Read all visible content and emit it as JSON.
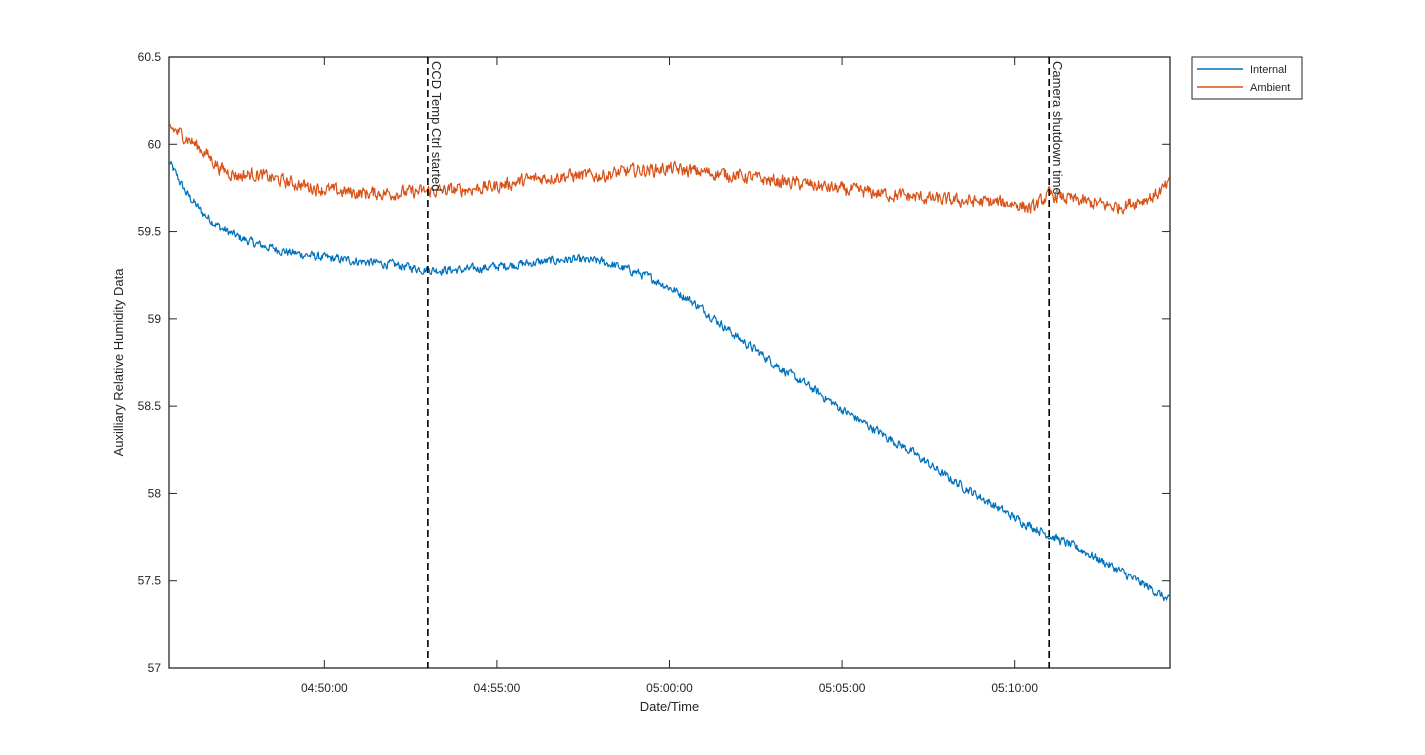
{
  "chart_data": {
    "type": "line",
    "title": "",
    "xlabel": "Date/Time",
    "ylabel": "Auxilliary Relative Humidity Data",
    "x_unit": "time of day (HH:MM:SS)",
    "xlim": [
      "04:45:30",
      "05:14:30"
    ],
    "ylim": [
      57,
      60.5
    ],
    "x_ticks": [
      "04:50:00",
      "04:55:00",
      "05:00:00",
      "05:05:00",
      "05:10:00"
    ],
    "y_ticks": [
      57,
      57.5,
      58,
      58.5,
      59,
      59.5,
      60,
      60.5
    ],
    "y_tick_labels": [
      "57",
      "57.5",
      "58",
      "58.5",
      "59",
      "59.5",
      "60",
      "60.5"
    ],
    "grid": false,
    "legend": {
      "position": "outside-top-right",
      "entries": [
        "Internal",
        "Ambient"
      ]
    },
    "annotations": [
      {
        "label": "CCD Temp Ctrl started",
        "x": "04:53:00",
        "style": "dashed-vertical"
      },
      {
        "label": "Camera shutdown time",
        "x": "05:11:00",
        "style": "dashed-vertical"
      }
    ],
    "series": [
      {
        "name": "Internal",
        "color": "#0072BD",
        "noise": 0.04,
        "x": [
          "04:45:30",
          "04:46:00",
          "04:46:30",
          "04:47:00",
          "04:47:30",
          "04:48:00",
          "04:49:00",
          "04:50:00",
          "04:51:00",
          "04:52:00",
          "04:53:00",
          "04:54:00",
          "04:55:00",
          "04:56:00",
          "04:57:00",
          "04:58:00",
          "04:58:30",
          "04:59:00",
          "04:59:30",
          "05:00:00",
          "05:00:30",
          "05:01:00",
          "05:01:30",
          "05:02:00",
          "05:02:30",
          "05:03:00",
          "05:03:30",
          "05:04:00",
          "05:05:00",
          "05:06:00",
          "05:07:00",
          "05:08:00",
          "05:09:00",
          "05:10:00",
          "05:11:00",
          "05:12:00",
          "05:13:00",
          "05:14:00",
          "05:14:30"
        ],
        "values": [
          59.9,
          59.72,
          59.6,
          59.52,
          59.47,
          59.43,
          59.38,
          59.35,
          59.33,
          59.31,
          59.28,
          59.28,
          59.3,
          59.32,
          59.34,
          59.33,
          59.3,
          59.27,
          59.23,
          59.18,
          59.12,
          59.05,
          58.97,
          58.89,
          58.82,
          58.75,
          58.68,
          58.62,
          58.48,
          58.36,
          58.24,
          58.1,
          57.98,
          57.86,
          57.76,
          57.67,
          57.56,
          57.45,
          57.38
        ]
      },
      {
        "name": "Ambient",
        "color": "#D95319",
        "noise": 0.06,
        "x": [
          "04:45:30",
          "04:46:00",
          "04:46:30",
          "04:47:00",
          "04:47:30",
          "04:48:00",
          "04:49:00",
          "04:50:00",
          "04:51:00",
          "04:52:00",
          "04:53:00",
          "04:54:00",
          "04:55:00",
          "04:56:00",
          "04:57:00",
          "04:58:00",
          "04:59:00",
          "05:00:00",
          "05:01:00",
          "05:02:00",
          "05:03:00",
          "05:04:00",
          "05:05:00",
          "05:06:00",
          "05:07:00",
          "05:08:00",
          "05:09:00",
          "05:10:00",
          "05:10:30",
          "05:11:00",
          "05:12:00",
          "05:13:00",
          "05:14:00",
          "05:14:30"
        ],
        "values": [
          60.1,
          60.04,
          59.96,
          59.86,
          59.82,
          59.83,
          59.78,
          59.74,
          59.72,
          59.72,
          59.73,
          59.74,
          59.76,
          59.8,
          59.82,
          59.82,
          59.85,
          59.86,
          59.84,
          59.82,
          59.79,
          59.77,
          59.74,
          59.72,
          59.7,
          59.68,
          59.67,
          59.66,
          59.63,
          59.71,
          59.67,
          59.64,
          59.7,
          59.77
        ]
      }
    ]
  }
}
